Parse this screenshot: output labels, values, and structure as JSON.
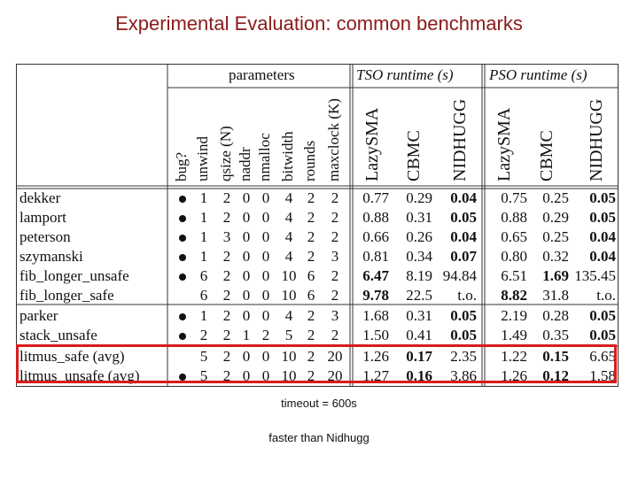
{
  "title": "Experimental Evaluation: common benchmarks",
  "headers": {
    "parameters": "parameters",
    "tso": "TSO runtime (s)",
    "pso": "PSO runtime (s)",
    "param_cols": [
      "bug?",
      "unwind",
      "qsize (N)",
      "naddr",
      "nmalloc",
      "bitwidth",
      "rounds",
      "maxclock (K)"
    ],
    "tool_cols": [
      "LazySMA",
      "CBMC",
      "NIDHUGG"
    ]
  },
  "rows": [
    {
      "name": "dekker",
      "bug": true,
      "params": [
        "1",
        "2",
        "0",
        "0",
        "4",
        "2",
        "2"
      ],
      "tso": [
        "0.77",
        "0.29",
        "0.04"
      ],
      "tso_bold": [
        false,
        false,
        true
      ],
      "pso": [
        "0.75",
        "0.25",
        "0.05"
      ],
      "pso_bold": [
        false,
        false,
        true
      ]
    },
    {
      "name": "lamport",
      "bug": true,
      "params": [
        "1",
        "2",
        "0",
        "0",
        "4",
        "2",
        "2"
      ],
      "tso": [
        "0.88",
        "0.31",
        "0.05"
      ],
      "tso_bold": [
        false,
        false,
        true
      ],
      "pso": [
        "0.88",
        "0.29",
        "0.05"
      ],
      "pso_bold": [
        false,
        false,
        true
      ]
    },
    {
      "name": "peterson",
      "bug": true,
      "params": [
        "1",
        "3",
        "0",
        "0",
        "4",
        "2",
        "2"
      ],
      "tso": [
        "0.66",
        "0.26",
        "0.04"
      ],
      "tso_bold": [
        false,
        false,
        true
      ],
      "pso": [
        "0.65",
        "0.25",
        "0.04"
      ],
      "pso_bold": [
        false,
        false,
        true
      ]
    },
    {
      "name": "szymanski",
      "bug": true,
      "params": [
        "1",
        "2",
        "0",
        "0",
        "4",
        "2",
        "3"
      ],
      "tso": [
        "0.81",
        "0.34",
        "0.07"
      ],
      "tso_bold": [
        false,
        false,
        true
      ],
      "pso": [
        "0.80",
        "0.32",
        "0.04"
      ],
      "pso_bold": [
        false,
        false,
        true
      ]
    },
    {
      "name": "fib_longer_unsafe",
      "bug": true,
      "params": [
        "6",
        "2",
        "0",
        "0",
        "10",
        "6",
        "2"
      ],
      "tso": [
        "6.47",
        "8.19",
        "94.84"
      ],
      "tso_bold": [
        true,
        false,
        false
      ],
      "pso": [
        "6.51",
        "1.69",
        "135.45"
      ],
      "pso_bold": [
        false,
        true,
        false
      ]
    },
    {
      "name": "fib_longer_safe",
      "bug": false,
      "params": [
        "6",
        "2",
        "0",
        "0",
        "10",
        "6",
        "2"
      ],
      "tso": [
        "9.78",
        "22.5",
        "t.o."
      ],
      "tso_bold": [
        true,
        false,
        false
      ],
      "pso": [
        "8.82",
        "31.8",
        "t.o."
      ],
      "pso_bold": [
        true,
        false,
        false
      ]
    },
    {
      "name": "parker",
      "bug": true,
      "params": [
        "1",
        "2",
        "0",
        "0",
        "4",
        "2",
        "3"
      ],
      "tso": [
        "1.68",
        "0.31",
        "0.05"
      ],
      "tso_bold": [
        false,
        false,
        true
      ],
      "pso": [
        "2.19",
        "0.28",
        "0.05"
      ],
      "pso_bold": [
        false,
        false,
        true
      ]
    },
    {
      "name": "stack_unsafe",
      "bug": true,
      "params": [
        "2",
        "2",
        "1",
        "2",
        "5",
        "2",
        "2"
      ],
      "tso": [
        "1.50",
        "0.41",
        "0.05"
      ],
      "tso_bold": [
        false,
        false,
        true
      ],
      "pso": [
        "1.49",
        "0.35",
        "0.05"
      ],
      "pso_bold": [
        false,
        false,
        true
      ]
    },
    {
      "name": "litmus_safe (avg)",
      "bug": false,
      "params": [
        "5",
        "2",
        "0",
        "0",
        "10",
        "2",
        "20"
      ],
      "tso": [
        "1.26",
        "0.17",
        "2.35"
      ],
      "tso_bold": [
        false,
        true,
        false
      ],
      "pso": [
        "1.22",
        "0.15",
        "6.65"
      ],
      "pso_bold": [
        false,
        true,
        false
      ]
    },
    {
      "name": "litmus_unsafe (avg)",
      "bug": true,
      "params": [
        "5",
        "2",
        "0",
        "0",
        "10",
        "2",
        "20"
      ],
      "tso": [
        "1.27",
        "0.16",
        "3.86"
      ],
      "tso_bold": [
        false,
        true,
        false
      ],
      "pso": [
        "1.26",
        "0.12",
        "1.58"
      ],
      "pso_bold": [
        false,
        true,
        false
      ]
    }
  ],
  "notes": {
    "timeout": "timeout = 600s",
    "faster": "faster than Nidhugg"
  },
  "colors": {
    "title": "#8b1a1a",
    "highlight": "#d81c1c"
  }
}
